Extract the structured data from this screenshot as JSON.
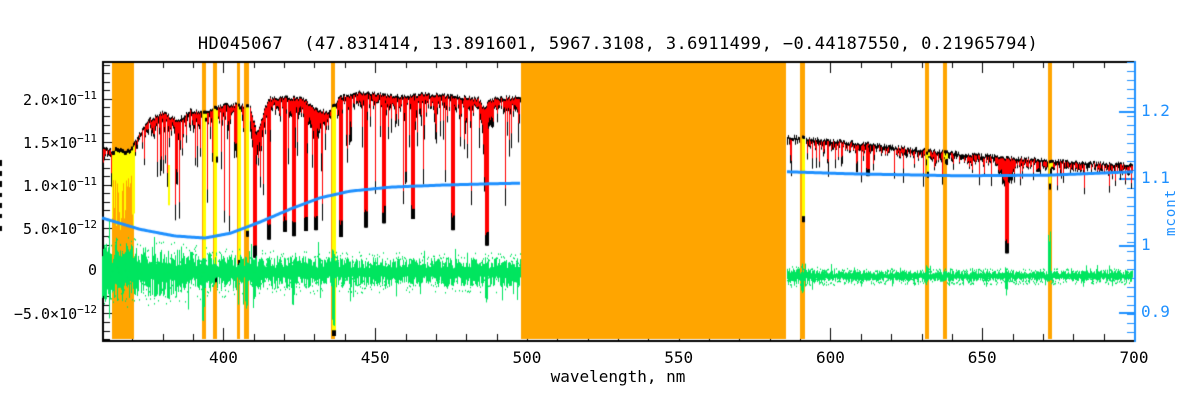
{
  "figure": {
    "title": "HD045067  (47.831414, 13.891601, 5967.3108, 3.6911499, −0.44187550, 0.21965794)"
  },
  "axes": {
    "x": {
      "label": "wavelength, nm",
      "min": 360,
      "max": 700,
      "major_ticks": [
        400,
        450,
        500,
        550,
        600,
        650,
        700
      ],
      "minor_step": 10
    },
    "y_left": {
      "clipped_title": true,
      "ticks": [
        {
          "mantissa": "2.0×10",
          "exponent": "−11",
          "flux_1e12": 20
        },
        {
          "mantissa": "1.5×10",
          "exponent": "−11",
          "flux_1e12": 15
        },
        {
          "mantissa": "1.0×10",
          "exponent": "−11",
          "flux_1e12": 10
        },
        {
          "mantissa": "5.0×10",
          "exponent": "−12",
          "flux_1e12": 5
        },
        {
          "mantissa": "0",
          "exponent": "",
          "flux_1e12": 0
        },
        {
          "mantissa": "−5.0×10",
          "exponent": "−12",
          "flux_1e12": -5
        }
      ]
    },
    "y_right": {
      "label": "mcont",
      "ticks": [
        1.2,
        1.1,
        1.0,
        0.9
      ],
      "range": [
        0.852,
        1.274
      ]
    }
  },
  "colors": {
    "observed": "#000000",
    "model": "#FF0000",
    "rejected": "#FFFF00",
    "masked_region": "#FFA500",
    "continuum": "#1E90FF",
    "residual": "#00E55F",
    "axis": "#000000",
    "background": "#ffffff"
  },
  "chart_data": {
    "type": "line",
    "title": "HD045067  (47.831414, 13.891601, 5967.3108, 3.6911499, −0.44187550, 0.21965794)",
    "xlabel": "wavelength, nm",
    "x_range_nm": [
      360,
      700
    ],
    "y_left_range_1e12_flux": [
      -8.2,
      24.4
    ],
    "y_right_range_mcont": [
      0.852,
      1.274
    ],
    "series": [
      {
        "name": "observed spectrum",
        "color": "#000000"
      },
      {
        "name": "fitted model spectrum",
        "color": "#FF0000"
      },
      {
        "name": "rejected pixels",
        "color": "#FFFF00"
      },
      {
        "name": "multiplicative continuum (mcont, right axis)",
        "color": "#1E90FF"
      },
      {
        "name": "residual observed minus model",
        "color": "#00E55F"
      },
      {
        "name": "masked wavelength regions",
        "color": "#FFA500"
      }
    ],
    "masked_regions_nm": [
      {
        "from": 363.3,
        "to": 370.5,
        "kind": "band"
      },
      {
        "from": 392.9,
        "to": 394.3,
        "kind": "line"
      },
      {
        "from": 396.6,
        "to": 397.9,
        "kind": "line"
      },
      {
        "from": 404.5,
        "to": 405.5,
        "kind": "line"
      },
      {
        "from": 406.8,
        "to": 408.4,
        "kind": "line"
      },
      {
        "from": 435.4,
        "to": 436.6,
        "kind": "line"
      },
      {
        "from": 498.0,
        "to": 585.3,
        "kind": "block"
      },
      {
        "from": 590.0,
        "to": 591.6,
        "kind": "line"
      },
      {
        "from": 631.1,
        "to": 632.4,
        "kind": "line"
      },
      {
        "from": 637.1,
        "to": 638.4,
        "kind": "line"
      },
      {
        "from": 671.6,
        "to": 673.0,
        "kind": "line"
      }
    ],
    "observed_envelope_left_nm_flux1e12": [
      [
        360.0,
        14.4
      ],
      [
        363.3,
        14.0
      ],
      [
        365.9,
        14.4
      ],
      [
        367.9,
        13.8
      ],
      [
        370.5,
        14.9
      ],
      [
        374.8,
        17.5
      ],
      [
        380.1,
        18.5
      ],
      [
        384.7,
        17.5
      ],
      [
        389.0,
        18.7
      ],
      [
        393.9,
        18.5
      ],
      [
        398.9,
        19.3
      ],
      [
        404.1,
        19.4
      ],
      [
        408.8,
        19.2
      ],
      [
        410.7,
        15.8
      ],
      [
        414.7,
        20.1
      ],
      [
        420.0,
        20.2
      ],
      [
        425.2,
        20.2
      ],
      [
        430.5,
        18.9
      ],
      [
        434.1,
        18.5
      ],
      [
        438.4,
        20.3
      ],
      [
        445.0,
        20.8
      ],
      [
        450.9,
        20.7
      ],
      [
        458.2,
        20.3
      ],
      [
        464.8,
        20.6
      ],
      [
        471.3,
        20.5
      ],
      [
        477.9,
        20.3
      ],
      [
        483.9,
        20.1
      ],
      [
        485.8,
        18.9
      ],
      [
        487.8,
        20.0
      ],
      [
        492.8,
        20.2
      ],
      [
        497.9,
        20.2
      ]
    ],
    "observed_envelope_right_nm_flux1e12": [
      [
        585.5,
        15.7
      ],
      [
        593.2,
        15.4
      ],
      [
        606.4,
        15.0
      ],
      [
        619.6,
        14.5
      ],
      [
        632.8,
        14.0
      ],
      [
        646.0,
        13.6
      ],
      [
        659.1,
        13.2
      ],
      [
        672.3,
        12.9
      ],
      [
        685.4,
        12.6
      ],
      [
        700.0,
        12.4
      ]
    ],
    "continuum_mcont_nm": [
      [
        360.0,
        1.04
      ],
      [
        372.5,
        1.023
      ],
      [
        384.0,
        1.013
      ],
      [
        393.9,
        1.01
      ],
      [
        402.2,
        1.017
      ],
      [
        412.1,
        1.034
      ],
      [
        421.9,
        1.053
      ],
      [
        431.8,
        1.07
      ],
      [
        441.7,
        1.08
      ],
      [
        454.9,
        1.086
      ],
      [
        471.3,
        1.089
      ],
      [
        487.8,
        1.091
      ],
      [
        497.9,
        1.092
      ],
      [
        585.5,
        1.109
      ],
      [
        606.4,
        1.106
      ],
      [
        642.6,
        1.103
      ],
      [
        672.3,
        1.104
      ],
      [
        700.0,
        1.109
      ]
    ],
    "absorption_features": [
      {
        "nm": 393.3,
        "core_flux_1e12": -1.5,
        "masked": true,
        "yellow_core_1e12": 0.9
      },
      {
        "nm": 396.9,
        "core_flux_1e12": -0.9,
        "masked": true,
        "yellow_core_1e12": 1.2
      },
      {
        "nm": 404.8,
        "core_flux_1e12": 1.0,
        "masked": true,
        "yellow_core_1e12": 2.0
      },
      {
        "nm": 407.4,
        "core_flux_1e12": 4.4,
        "masked": true,
        "yellow_core_1e12": 5.2
      },
      {
        "nm": 410.1,
        "core_flux_1e12": 1.5,
        "masked": false,
        "wings": true
      },
      {
        "nm": 414.7,
        "core_flux_1e12": 3.6,
        "masked": false
      },
      {
        "nm": 420.0,
        "core_flux_1e12": 4.5,
        "masked": false
      },
      {
        "nm": 422.9,
        "core_flux_1e12": 4.0,
        "masked": false
      },
      {
        "nm": 427.0,
        "core_flux_1e12": 4.6,
        "masked": false
      },
      {
        "nm": 430.2,
        "core_flux_1e12": 4.7,
        "masked": false,
        "wings": true
      },
      {
        "nm": 436.1,
        "core_flux_1e12": 4.4,
        "masked": true,
        "yellow_core_1e12": -7.2
      },
      {
        "nm": 438.4,
        "core_flux_1e12": 3.9,
        "masked": false
      },
      {
        "nm": 446.6,
        "core_flux_1e12": 5.0,
        "masked": false
      },
      {
        "nm": 452.5,
        "core_flux_1e12": 5.5,
        "masked": false
      },
      {
        "nm": 462.0,
        "core_flux_1e12": 6.0,
        "masked": false
      },
      {
        "nm": 475.3,
        "core_flux_1e12": 4.7,
        "masked": false
      },
      {
        "nm": 486.5,
        "core_flux_1e12": 2.9,
        "masked": false,
        "wings": true
      },
      {
        "nm": 590.6,
        "core_flux_1e12": 6.1,
        "masked": true,
        "yellow_core_1e12": 7.6
      },
      {
        "nm": 612.0,
        "core_flux_1e12": 11.0,
        "masked": false
      },
      {
        "nm": 657.8,
        "core_flux_1e12": 2.0,
        "masked": false,
        "wings": true
      },
      {
        "nm": 668.0,
        "core_flux_1e12": 11.5,
        "masked": false
      }
    ],
    "rejected_spikes": [
      {
        "nm": 381.7,
        "top_flux_1e12": 12.3,
        "bottom_flux_1e12": 7.6
      }
    ],
    "residual": {
      "center_flux_1e12_left": -0.2,
      "center_flux_1e12_right": -0.65,
      "half_amplitude_profile_nm_1e12": [
        [
          360,
          2.6
        ],
        [
          368,
          2.6
        ],
        [
          372,
          2.3
        ],
        [
          380,
          2.1
        ],
        [
          390,
          1.8
        ],
        [
          400,
          1.6
        ],
        [
          412,
          1.5
        ],
        [
          425,
          1.4
        ],
        [
          440,
          1.35
        ],
        [
          460,
          1.3
        ],
        [
          498,
          1.3
        ],
        [
          585,
          0.75
        ],
        [
          600,
          0.55
        ],
        [
          620,
          0.5
        ],
        [
          650,
          0.5
        ],
        [
          700,
          0.5
        ]
      ],
      "spikes": [
        {
          "nm": 381.7,
          "down_1e12": 3.0,
          "up_1e12": 1.0
        },
        {
          "nm": 393.3,
          "down_1e12": 5.2,
          "up_1e12": 1.5
        },
        {
          "nm": 407.4,
          "down_1e12": 4.7,
          "up_1e12": 1.2
        },
        {
          "nm": 410.1,
          "down_1e12": 4.1,
          "up_1e12": 1.0
        },
        {
          "nm": 422.9,
          "down_1e12": 3.5,
          "up_1e12": 1.0
        },
        {
          "nm": 436.1,
          "down_1e12": 6.4,
          "up_1e12": 2.3
        },
        {
          "nm": 486.5,
          "down_1e12": 3.3,
          "up_1e12": 1.0
        },
        {
          "nm": 590.6,
          "down_1e12": 2.1,
          "up_1e12": 0.5
        },
        {
          "nm": 631.8,
          "down_1e12": 0.5,
          "up_1e12": 1.2
        },
        {
          "nm": 657.8,
          "down_1e12": 2.1,
          "up_1e12": 0.5
        },
        {
          "nm": 672.0,
          "down_1e12": 0.5,
          "up_1e12": 4.9
        }
      ]
    }
  }
}
